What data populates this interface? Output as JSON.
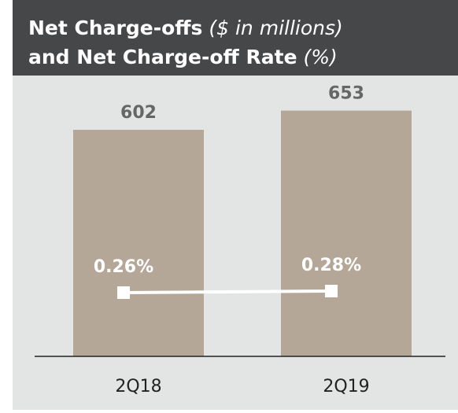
{
  "chart_data": {
    "type": "bar",
    "title_lines": [
      {
        "text": "Net Charge-offs",
        "unit": "($ in millions)"
      },
      {
        "text": "and Net Charge-off Rate",
        "unit": "(%)"
      }
    ],
    "categories": [
      "2Q18",
      "2Q19"
    ],
    "ylim": [
      0,
      740
    ],
    "y2lim": [
      -0.55,
      2.99
    ],
    "series": [
      {
        "type": "bar",
        "color": "#b5a798",
        "values": [
          602,
          653
        ]
      },
      {
        "type": "line",
        "axis": "y2",
        "color": "#ffffff",
        "values": [
          0.26,
          0.28
        ],
        "value_labels": [
          "0.26%",
          "0.28%"
        ]
      }
    ]
  }
}
